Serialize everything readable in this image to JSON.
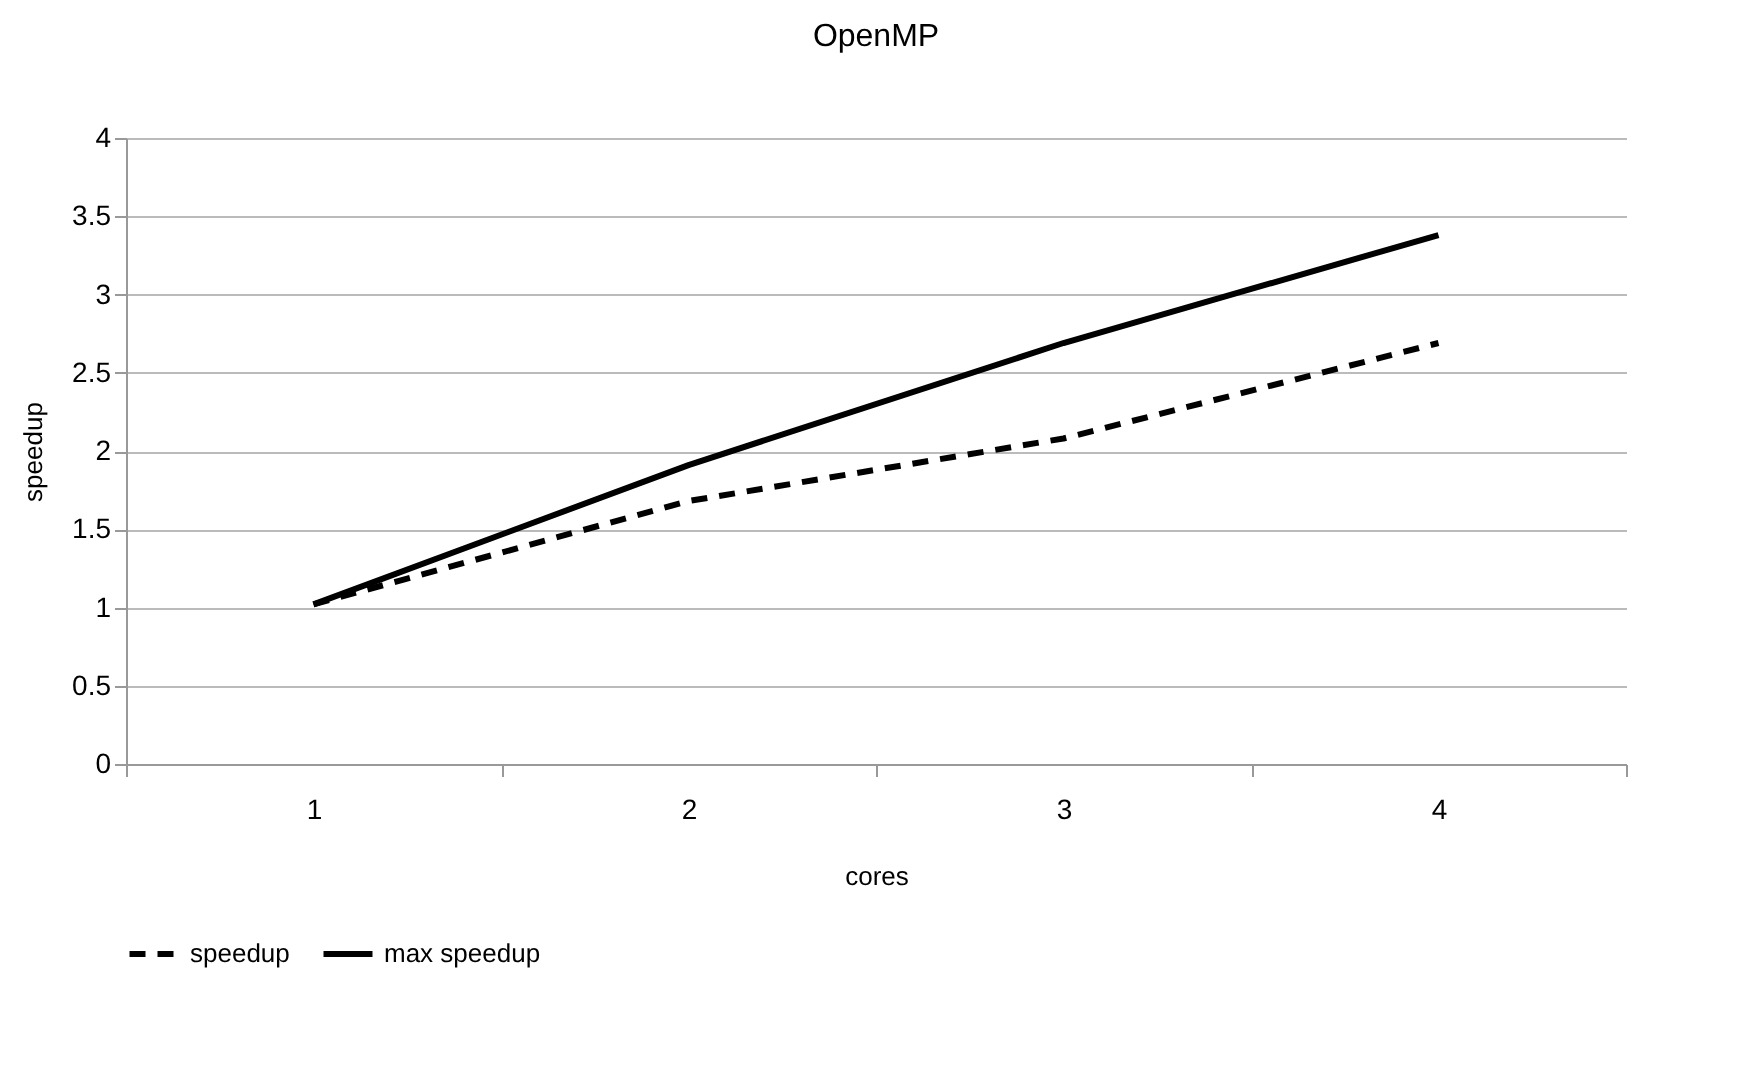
{
  "chart_data": {
    "type": "line",
    "title": "OpenMP",
    "xlabel": "cores",
    "ylabel": "speedup",
    "categories": [
      "1",
      "2",
      "3",
      "4"
    ],
    "series": [
      {
        "name": "speedup",
        "color": "#000000",
        "line_style": "dashed",
        "values": [
          1.02,
          1.68,
          2.08,
          2.69
        ]
      },
      {
        "name": "max speedup",
        "color": "#000000",
        "line_style": "solid",
        "values": [
          1.02,
          1.91,
          2.69,
          3.38
        ]
      }
    ],
    "ylim": [
      0,
      4
    ],
    "yticks": [
      0,
      0.5,
      1,
      1.5,
      2,
      2.5,
      3,
      3.5,
      4
    ],
    "grid": "y",
    "legend": "bottom",
    "marker": "none"
  }
}
